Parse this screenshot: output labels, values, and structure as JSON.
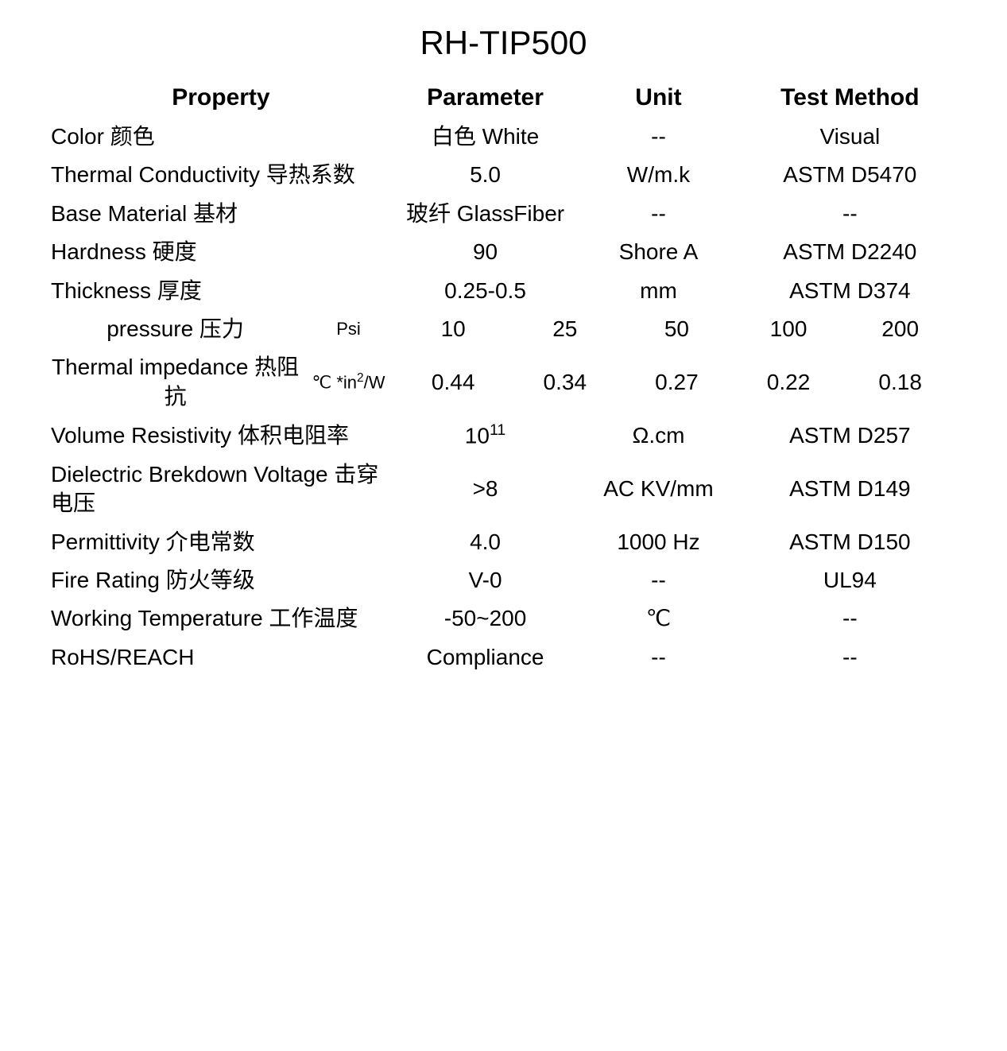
{
  "title": "RH-TIP500",
  "headers": {
    "property": "Property",
    "parameter": "Parameter",
    "unit": "Unit",
    "method": "Test Method"
  },
  "rows": {
    "color": {
      "property": "Color 颜色",
      "parameter": "白色 White",
      "unit": "--",
      "method": "Visual"
    },
    "thermcond": {
      "property": "Thermal Conductivity 导热系数",
      "parameter": "5.0",
      "unit": "W/m.k",
      "method": "ASTM D5470"
    },
    "base": {
      "property": "Base Material 基材",
      "parameter": "玻纤 GlassFiber",
      "unit": "--",
      "method": "--"
    },
    "hardness": {
      "property": "Hardness 硬度",
      "parameter": "90",
      "unit": "Shore A",
      "method": "ASTM D2240"
    },
    "thickness": {
      "property": "Thickness 厚度",
      "parameter": "0.25-0.5",
      "unit": "mm",
      "method": "ASTM D374"
    },
    "pressure": {
      "property": "pressure 压力",
      "subunit": "Psi",
      "v1": "10",
      "v2": "25",
      "v3": "50",
      "v4": "100",
      "v5": "200"
    },
    "impedance": {
      "property": "Thermal impedance 热阻抗",
      "subunit_html": "℃ *in<sup>2</sup>/W",
      "v1": "0.44",
      "v2": "0.34",
      "v3": "0.27",
      "v4": "0.22",
      "v5": "0.18"
    },
    "volres": {
      "property": "Volume Resistivity 体积电阻率",
      "parameter_html": "10<sup>11</sup>",
      "unit": "Ω.cm",
      "method": "ASTM D257"
    },
    "dielectric": {
      "property": "Dielectric Brekdown Voltage 击穿电压",
      "parameter": ">8",
      "unit": "AC KV/mm",
      "method": "ASTM D149"
    },
    "permit": {
      "property": "Permittivity 介电常数",
      "parameter": "4.0",
      "unit": "1000 Hz",
      "method": "ASTM D150"
    },
    "fire": {
      "property": "Fire Rating  防火等级",
      "parameter": "V-0",
      "unit": "--",
      "method": "UL94"
    },
    "worktemp": {
      "property": "Working Temperature 工作温度",
      "parameter": "-50~200",
      "unit": "℃",
      "method": "--"
    },
    "rohs": {
      "property": "RoHS/REACH",
      "parameter": "Compliance",
      "unit": "--",
      "method": "--"
    }
  }
}
